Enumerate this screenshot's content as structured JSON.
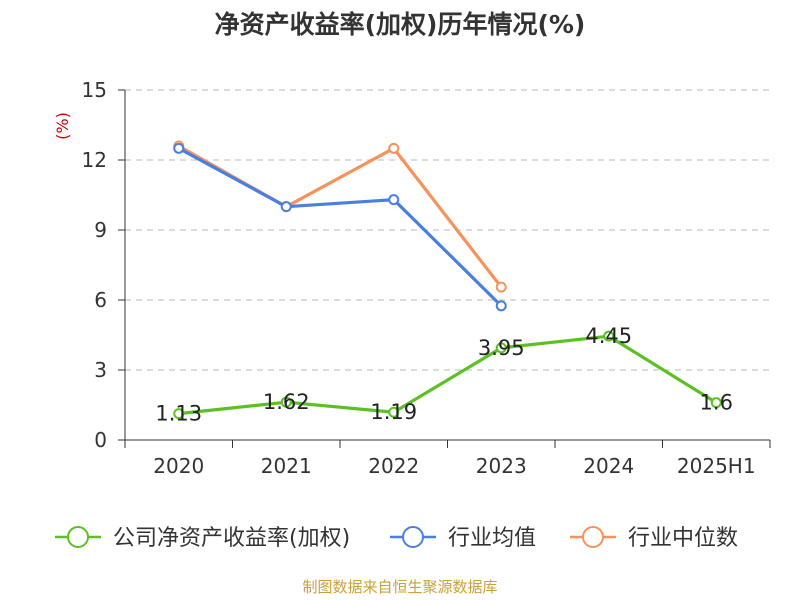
{
  "chart_data": {
    "type": "line",
    "title": "净资产收益率(加权)历年情况(%)",
    "ylabel": "(%)",
    "categories": [
      "2020",
      "2021",
      "2022",
      "2023",
      "2024",
      "2025H1"
    ],
    "ylim": [
      0,
      15
    ],
    "yticks": [
      "0",
      "3",
      "6",
      "9",
      "12",
      "15"
    ],
    "grid": "horizontal-dashed",
    "legend_position": "bottom",
    "series": [
      {
        "name": "公司净资产收益率(加权)",
        "color": "#5cc025",
        "values": [
          1.13,
          1.62,
          1.19,
          3.95,
          4.45,
          1.6
        ],
        "labels": [
          "1.13",
          "1.62",
          "1.19",
          "3.95",
          "4.45",
          "1.6"
        ]
      },
      {
        "name": "行业均值",
        "color": "#4a7fdc",
        "values": [
          12.5,
          10.0,
          10.3,
          5.75,
          null,
          null
        ]
      },
      {
        "name": "行业中位数",
        "color": "#f6925c",
        "values": [
          12.6,
          10.0,
          12.5,
          6.55,
          null,
          null
        ]
      }
    ]
  },
  "source": "制图数据来自恒生聚源数据库"
}
